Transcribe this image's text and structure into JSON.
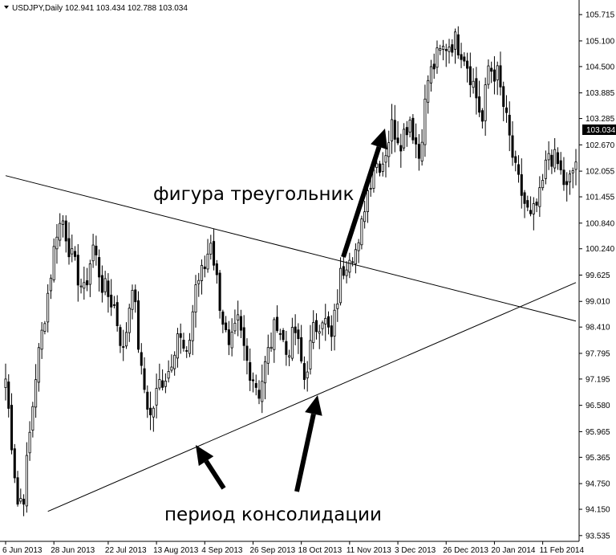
{
  "header": {
    "symbol_label": "USDJPY,Daily",
    "ohlc": "102.941 103.434 102.788 103.034"
  },
  "annotations": {
    "triangle_label": "фигура треугольник",
    "consolidation_label": "период консолидации"
  },
  "colors": {
    "background": "#ffffff",
    "candle": "#000000",
    "trendline": "#000000",
    "price_tag_bg": "#000000",
    "price_tag_text": "#ffffff"
  },
  "chart_data": {
    "type": "candlestick",
    "title": "USDJPY,Daily",
    "last_price": 103.034,
    "last_price_label": "103.034",
    "ylim": [
      93.4,
      106.0
    ],
    "y_ticks": [
      {
        "value": 105.715,
        "label": "105.715"
      },
      {
        "value": 105.1,
        "label": "105.100"
      },
      {
        "value": 104.5,
        "label": "104.500"
      },
      {
        "value": 103.885,
        "label": "103.885"
      },
      {
        "value": 103.285,
        "label": "103.285"
      },
      {
        "value": 102.67,
        "label": "102.670"
      },
      {
        "value": 102.055,
        "label": "102.055"
      },
      {
        "value": 101.455,
        "label": "101.455"
      },
      {
        "value": 100.84,
        "label": "100.840"
      },
      {
        "value": 100.24,
        "label": "100.240"
      },
      {
        "value": 99.625,
        "label": "99.625"
      },
      {
        "value": 99.01,
        "label": "99.010"
      },
      {
        "value": 98.41,
        "label": "98.410"
      },
      {
        "value": 97.795,
        "label": "97.795"
      },
      {
        "value": 97.195,
        "label": "97.195"
      },
      {
        "value": 96.58,
        "label": "96.580"
      },
      {
        "value": 95.965,
        "label": "95.965"
      },
      {
        "value": 95.365,
        "label": "95.365"
      },
      {
        "value": 94.75,
        "label": "94.750"
      },
      {
        "value": 94.15,
        "label": "94.150"
      },
      {
        "value": 93.535,
        "label": "93.535"
      }
    ],
    "x_ticks": [
      {
        "index": 0,
        "label": "6 Jun 2013"
      },
      {
        "index": 16,
        "label": "28 Jun 2013"
      },
      {
        "index": 34,
        "label": "22 Jul 2013"
      },
      {
        "index": 50,
        "label": "13 Aug 2013"
      },
      {
        "index": 66,
        "label": "4 Sep 2013"
      },
      {
        "index": 82,
        "label": "26 Sep 2013"
      },
      {
        "index": 98,
        "label": "18 Oct 2013"
      },
      {
        "index": 114,
        "label": "11 Nov 2013"
      },
      {
        "index": 130,
        "label": "3 Dec 2013"
      },
      {
        "index": 146,
        "label": "26 Dec 2013"
      },
      {
        "index": 162,
        "label": "20 Jan 2014"
      },
      {
        "index": 178,
        "label": "11 Feb 2014"
      }
    ],
    "bar_count": 190,
    "anchors": [
      [
        0,
        97.2
      ],
      [
        4,
        94.3
      ],
      [
        6,
        94.5
      ],
      [
        10,
        97.3
      ],
      [
        14,
        99.2
      ],
      [
        17,
        100.7
      ],
      [
        19,
        100.9
      ],
      [
        22,
        100.0
      ],
      [
        26,
        99.2
      ],
      [
        29,
        100.3
      ],
      [
        32,
        99.4
      ],
      [
        36,
        98.9
      ],
      [
        39,
        97.8
      ],
      [
        42,
        99.5
      ],
      [
        45,
        97.3
      ],
      [
        48,
        96.3
      ],
      [
        51,
        97.1
      ],
      [
        54,
        97.4
      ],
      [
        57,
        98.3
      ],
      [
        60,
        97.6
      ],
      [
        63,
        99.4
      ],
      [
        66,
        99.8
      ],
      [
        68,
        100.5
      ],
      [
        71,
        99.0
      ],
      [
        74,
        97.8
      ],
      [
        77,
        98.5
      ],
      [
        80,
        97.6
      ],
      [
        84,
        96.9
      ],
      [
        87,
        97.8
      ],
      [
        90,
        98.6
      ],
      [
        93,
        97.8
      ],
      [
        96,
        98.3
      ],
      [
        99,
        97.2
      ],
      [
        102,
        98.3
      ],
      [
        105,
        98.7
      ],
      [
        108,
        98.1
      ],
      [
        111,
        99.6
      ],
      [
        114,
        100.2
      ],
      [
        117,
        100.2
      ],
      [
        119,
        101.3
      ],
      [
        122,
        102.2
      ],
      [
        125,
        102.3
      ],
      [
        128,
        103.1
      ],
      [
        131,
        102.8
      ],
      [
        134,
        103.3
      ],
      [
        137,
        102.4
      ],
      [
        140,
        104.2
      ],
      [
        143,
        104.7
      ],
      [
        146,
        105.0
      ],
      [
        149,
        105.1
      ],
      [
        152,
        104.8
      ],
      [
        155,
        104.1
      ],
      [
        158,
        103.2
      ],
      [
        160,
        104.5
      ],
      [
        163,
        104.3
      ],
      [
        166,
        103.2
      ],
      [
        169,
        102.0
      ],
      [
        172,
        101.3
      ],
      [
        174,
        100.9
      ],
      [
        177,
        101.4
      ],
      [
        180,
        102.5
      ],
      [
        183,
        102.2
      ],
      [
        186,
        101.6
      ],
      [
        189,
        102.3
      ]
    ],
    "trendlines": [
      {
        "name": "resistance",
        "from": {
          "index": 0,
          "value": 101.95
        },
        "to": {
          "index": 189,
          "value": 98.55
        }
      },
      {
        "name": "support",
        "from": {
          "index": 14,
          "value": 94.1
        },
        "to": {
          "index": 189,
          "value": 99.45
        }
      }
    ]
  }
}
